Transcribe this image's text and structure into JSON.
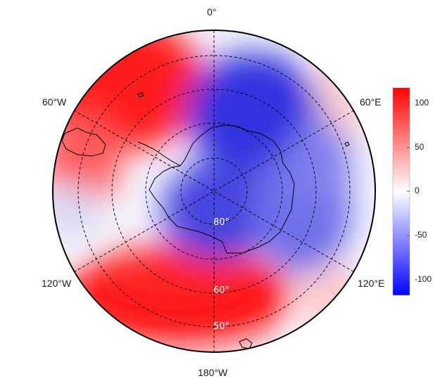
{
  "longitude_labels": {
    "north": "0°",
    "upper_left": "60°W",
    "upper_right": "60°E",
    "lower_left": "120°W",
    "lower_right": "120°E",
    "south": "180°W"
  },
  "latitude_labels": [
    "80°",
    "60°",
    "50°"
  ],
  "colorbar": {
    "min": -120,
    "max": 120,
    "ticks": [
      "100",
      "50",
      "0",
      "-50",
      "-100"
    ],
    "low_color": "#0000ff",
    "mid_color": "#ffffff",
    "high_color": "#ff0000"
  },
  "field_pattern": "wave-3 anomaly: positive over Weddell Sea/Antarctic Peninsula sector and Ross/Amundsen Sea sector, negative over East Antarctica and Indian Ocean sector",
  "coastline": "Antarctica and southern South America"
}
